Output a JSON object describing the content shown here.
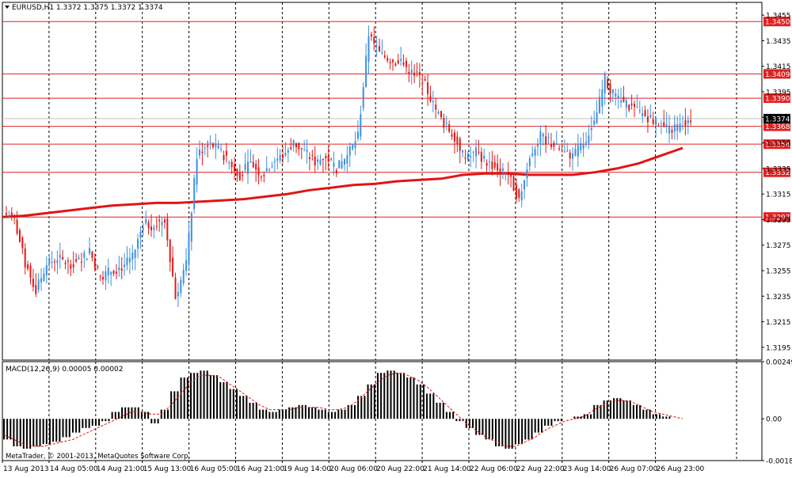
{
  "header": {
    "symbol_timeframe": "EURUSD,H1",
    "ohlc_text": "1.3372 1.3375 1.3372 1.3374"
  },
  "macd_label": "MACD(12,26,9) 0.00005 0.00002",
  "copyright": "MetaTrader, © 2001-2013, MetaQuotes Software Corp.",
  "colors": {
    "background": "#ffffff",
    "bull": "#3d8fe0",
    "bear": "#e01a1a",
    "level_line": "#e02020",
    "moving_average": "#e01515",
    "macd_histogram": "#000000",
    "macd_signal": "#e01010",
    "grid": "#000000",
    "current_price_tag": "#000000"
  },
  "chart_data": [
    {
      "type": "candlestick",
      "title": "EURUSD,H1",
      "ylim": [
        1.3185,
        1.3465
      ],
      "x_labels": [
        "13 Aug 2013",
        "14 Aug 05:00",
        "14 Aug 21:00",
        "15 Aug 13:00",
        "16 Aug 05:00",
        "16 Aug 21:00",
        "19 Aug 14:00",
        "20 Aug 06:00",
        "20 Aug 22:00",
        "21 Aug 14:00",
        "22 Aug 06:00",
        "22 Aug 22:00",
        "23 Aug 14:00",
        "26 Aug 07:00",
        "26 Aug 23:00"
      ],
      "y_ticks": [
        "1.3455",
        "1.3435",
        "1.3415",
        "1.3395",
        "1.3375",
        "1.3355",
        "1.3335",
        "1.3315",
        "1.3295",
        "1.3275",
        "1.3255",
        "1.3235",
        "1.3215",
        "1.3195"
      ],
      "grid": true,
      "current_price": "1.3374",
      "horizontal_levels": [
        "1.3450",
        "1.3409",
        "1.3390",
        "1.3368",
        "1.3354",
        "1.3332",
        "1.3297"
      ],
      "moving_average": [
        1.3297,
        1.3298,
        1.33,
        1.3302,
        1.3304,
        1.3306,
        1.3307,
        1.3308,
        1.3308,
        1.3309,
        1.331,
        1.3311,
        1.3313,
        1.3315,
        1.3318,
        1.332,
        1.3322,
        1.3323,
        1.3325,
        1.3326,
        1.3327,
        1.333,
        1.3331,
        1.3331,
        1.333,
        1.333,
        1.333,
        1.3332,
        1.3335,
        1.3339,
        1.3345,
        1.3351
      ],
      "close": [
        1.3295,
        1.326,
        1.324,
        1.326,
        1.3265,
        1.326,
        1.3262,
        1.327,
        1.325,
        1.3255,
        1.3258,
        1.3265,
        1.3292,
        1.329,
        1.3296,
        1.3235,
        1.326,
        1.3345,
        1.3355,
        1.335,
        1.334,
        1.333,
        1.334,
        1.333,
        1.334,
        1.3345,
        1.3355,
        1.3348,
        1.334,
        1.3345,
        1.3335,
        1.3345,
        1.336,
        1.344,
        1.3425,
        1.342,
        1.3418,
        1.341,
        1.3405,
        1.3385,
        1.337,
        1.336,
        1.3342,
        1.3348,
        1.334,
        1.3335,
        1.333,
        1.331,
        1.3345,
        1.336,
        1.3355,
        1.3348,
        1.3345,
        1.3355,
        1.337,
        1.3405,
        1.339,
        1.3385,
        1.338,
        1.3375,
        1.337,
        1.3365,
        1.3368,
        1.3374
      ],
      "ohlc_sample": {
        "open": 1.3372,
        "high": 1.3375,
        "low": 1.3372,
        "close": 1.3374
      }
    },
    {
      "type": "bar",
      "title": "MACD(12,26,9)",
      "name": "MACD(12,26,9)",
      "value_text": "0.00005 0.00002",
      "ylim": [
        -0.00182,
        0.00249
      ],
      "y_ticks": [
        "0.00249",
        "0.00",
        "-0.00182"
      ],
      "histogram": [
        -0.0009,
        -0.0012,
        -0.0013,
        -0.0012,
        -0.0011,
        -0.001,
        -0.0008,
        -0.0006,
        -0.0004,
        -0.0003,
        -0.0001,
        0.0003,
        0.0005,
        0.0005,
        0.0003,
        -0.0002,
        0.0004,
        0.0012,
        0.0018,
        0.002,
        0.0021,
        0.0019,
        0.0016,
        0.0013,
        0.001,
        0.0007,
        0.0004,
        0.0003,
        0.0004,
        0.0005,
        0.0006,
        0.0005,
        0.0004,
        0.0003,
        0.0004,
        0.0006,
        0.001,
        0.0015,
        0.002,
        0.0021,
        0.002,
        0.0018,
        0.0015,
        0.0011,
        0.0007,
        0.0003,
        -0.0001,
        -0.0004,
        -0.0007,
        -0.0009,
        -0.0012,
        -0.0013,
        -0.0011,
        -0.0009,
        -0.0006,
        -0.0003,
        -0.0001,
        0.0,
        0.0001,
        0.0002,
        0.0006,
        0.0008,
        0.0009,
        0.0008,
        0.0006,
        0.0004,
        0.0002,
        0.0001,
        0.0,
        0.0
      ],
      "signal": [
        -0.0007,
        -0.0009,
        -0.0011,
        -0.0012,
        -0.0012,
        -0.0011,
        -0.001,
        -0.0009,
        -0.0007,
        -0.0005,
        -0.0003,
        -0.0001,
        0.0001,
        0.0003,
        0.0003,
        0.0002,
        0.0002,
        0.0006,
        0.0011,
        0.0016,
        0.0019,
        0.0019,
        0.0018,
        0.0015,
        0.0012,
        0.0009,
        0.0006,
        0.0004,
        0.0004,
        0.0004,
        0.0005,
        0.0005,
        0.0005,
        0.0004,
        0.0004,
        0.0005,
        0.0008,
        0.0012,
        0.0016,
        0.0019,
        0.002,
        0.0019,
        0.0017,
        0.0014,
        0.001,
        0.0006,
        0.0002,
        -0.0002,
        -0.0005,
        -0.0008,
        -0.001,
        -0.0012,
        -0.0012,
        -0.001,
        -0.0008,
        -0.0005,
        -0.0003,
        -0.0001,
        0.0,
        0.0001,
        0.0004,
        0.0006,
        0.0008,
        0.0008,
        0.0007,
        0.0005,
        0.0003,
        0.0002,
        0.0001,
        0.0
      ]
    }
  ]
}
